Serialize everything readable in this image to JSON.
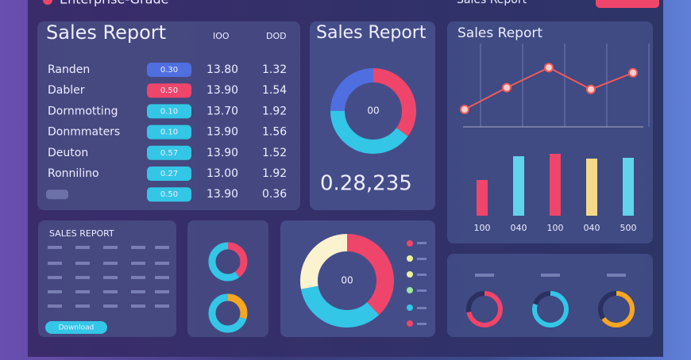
{
  "header": {
    "title": "Enterprise-Grade",
    "link": "Sales Report"
  },
  "table": {
    "title": "Sales Report",
    "columns": [
      "IOO",
      "DOD"
    ],
    "rows": [
      {
        "name": "Randen",
        "badge": "0.30",
        "badge_color": "#4f6fe0",
        "value": "13.80",
        "change": "1.32"
      },
      {
        "name": "Dabler",
        "badge": "0.50",
        "badge_color": "#f0456a",
        "value": "13.90",
        "change": "1.54"
      },
      {
        "name": "Dornmotting",
        "badge": "0.10",
        "badge_color": "#33c6e6",
        "value": "13.70",
        "change": "1.92"
      },
      {
        "name": "Donmmaters",
        "badge": "0.10",
        "badge_color": "#33c6e6",
        "value": "13.90",
        "change": "1.56"
      },
      {
        "name": "Deuton",
        "badge": "0.57",
        "badge_color": "#33c6e6",
        "value": "13.90",
        "change": "1.52"
      },
      {
        "name": "Ronnilino",
        "badge": "0.27",
        "badge_color": "#33c6e6",
        "value": "13.00",
        "change": "1.92"
      },
      {
        "badge": "0.50",
        "badge_color": "#33c6e6",
        "value": "13.90",
        "change": "0.36"
      }
    ]
  },
  "donut_card": {
    "title": "Sales Report",
    "center": "00",
    "total": "0.28,235",
    "segments": [
      {
        "value": 35,
        "color": "#f0456a"
      },
      {
        "value": 40,
        "color": "#33c6e6"
      },
      {
        "value": 25,
        "color": "#4f6fe0"
      }
    ]
  },
  "trend_card": {
    "title": "Sales Report",
    "line": {
      "values": [
        20,
        45,
        68,
        43,
        62
      ],
      "color": "#f05a5a",
      "ylim": [
        0,
        100
      ]
    },
    "bars": {
      "categories": [
        "100",
        "040",
        "100",
        "040",
        "500"
      ],
      "values": [
        45,
        75,
        78,
        72,
        73
      ],
      "colors": [
        "#f0456a",
        "#5fd4ea",
        "#f0456a",
        "#f5d98a",
        "#5fd4ea"
      ],
      "ylim": [
        0,
        100
      ]
    }
  },
  "summary_card": {
    "title": "SALES REPORT",
    "button": "Download"
  },
  "mini_donuts": [
    {
      "segments": [
        {
          "value": 40,
          "color": "#f0456a"
        },
        {
          "value": 60,
          "color": "#33c6e6"
        }
      ]
    },
    {
      "segments": [
        {
          "value": 30,
          "color": "#f5a623"
        },
        {
          "value": 70,
          "color": "#33c6e6"
        }
      ]
    }
  ],
  "share_card": {
    "center": "00",
    "segments": [
      {
        "value": 38,
        "color": "#f0456a"
      },
      {
        "value": 34,
        "color": "#33c6e6"
      },
      {
        "value": 28,
        "color": "#fbf3cf"
      }
    ]
  },
  "gauges": [
    {
      "value": 72,
      "color": "#f0456a"
    },
    {
      "value": 80,
      "color": "#33c6e6"
    },
    {
      "value": 65,
      "color": "#f5a623"
    }
  ]
}
